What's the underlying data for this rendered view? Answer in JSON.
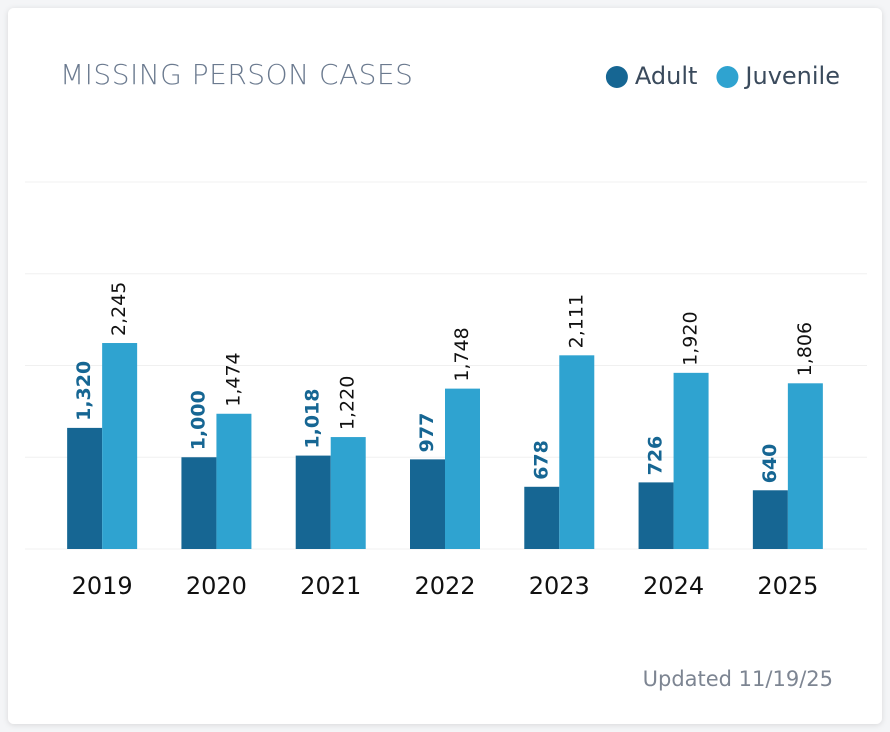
{
  "chart_data": {
    "type": "bar",
    "title": "MISSING PERSON CASES",
    "categories": [
      "2019",
      "2020",
      "2021",
      "2022",
      "2023",
      "2024",
      "2025"
    ],
    "series": [
      {
        "name": "Adult",
        "color": "#166693",
        "values": [
          1320,
          1000,
          1018,
          977,
          678,
          726,
          640
        ],
        "value_labels": [
          "1,320",
          "1,000",
          "1,018",
          "977",
          "678",
          "726",
          "640"
        ]
      },
      {
        "name": "Juvenile",
        "color": "#2fa3d0",
        "values": [
          2245,
          1474,
          1220,
          1748,
          2111,
          1920,
          1806
        ],
        "value_labels": [
          "2,245",
          "1,474",
          "1,220",
          "1,748",
          "2,111",
          "1,920",
          "1,806"
        ]
      }
    ],
    "ylim": [
      0,
      4000
    ],
    "yticks": [
      0,
      1000,
      2000,
      3000,
      4000
    ],
    "grid": true,
    "legend": "top-right",
    "footnote": "Updated 11/19/25"
  }
}
